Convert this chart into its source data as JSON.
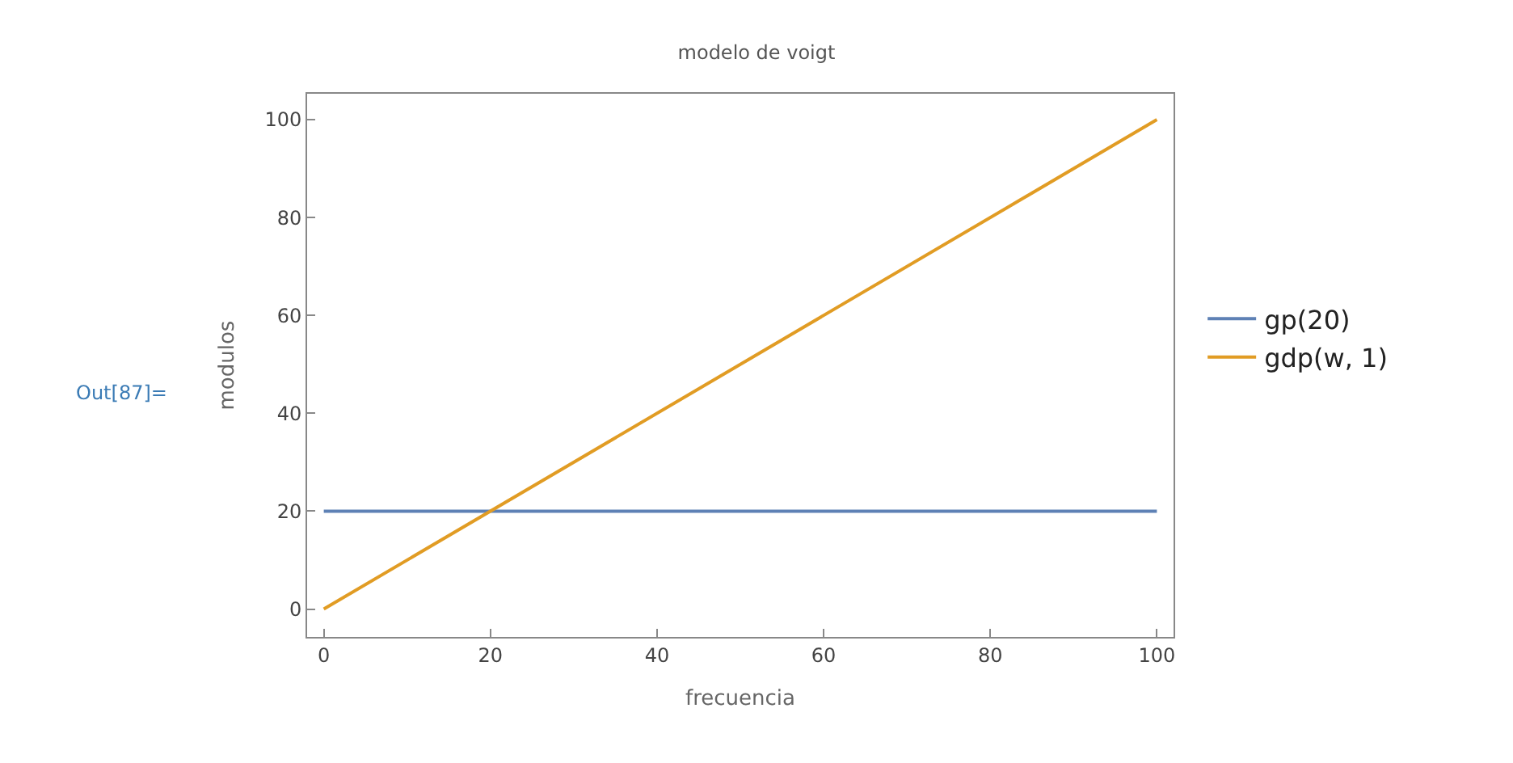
{
  "chart_data": {
    "type": "line",
    "title": "modelo de voigt",
    "xlabel": "frecuencia",
    "ylabel": "modulos",
    "x": [
      0,
      100
    ],
    "series": [
      {
        "name": "gp(20)",
        "color": "#5e81b5",
        "values": [
          20,
          20
        ]
      },
      {
        "name": "gdp(w, 1)",
        "color": "#e19c24",
        "values": [
          0,
          100
        ]
      }
    ],
    "xlim": [
      -2,
      102
    ],
    "xticks": [
      0,
      20,
      40,
      60,
      80,
      100
    ],
    "ylim": [
      -5.7,
      105.3
    ],
    "yticks": [
      0,
      20,
      40,
      60,
      80,
      100
    ],
    "legend": "right",
    "marker": "none",
    "line_style": "solid",
    "annotations": [
      "Out[87]="
    ]
  }
}
